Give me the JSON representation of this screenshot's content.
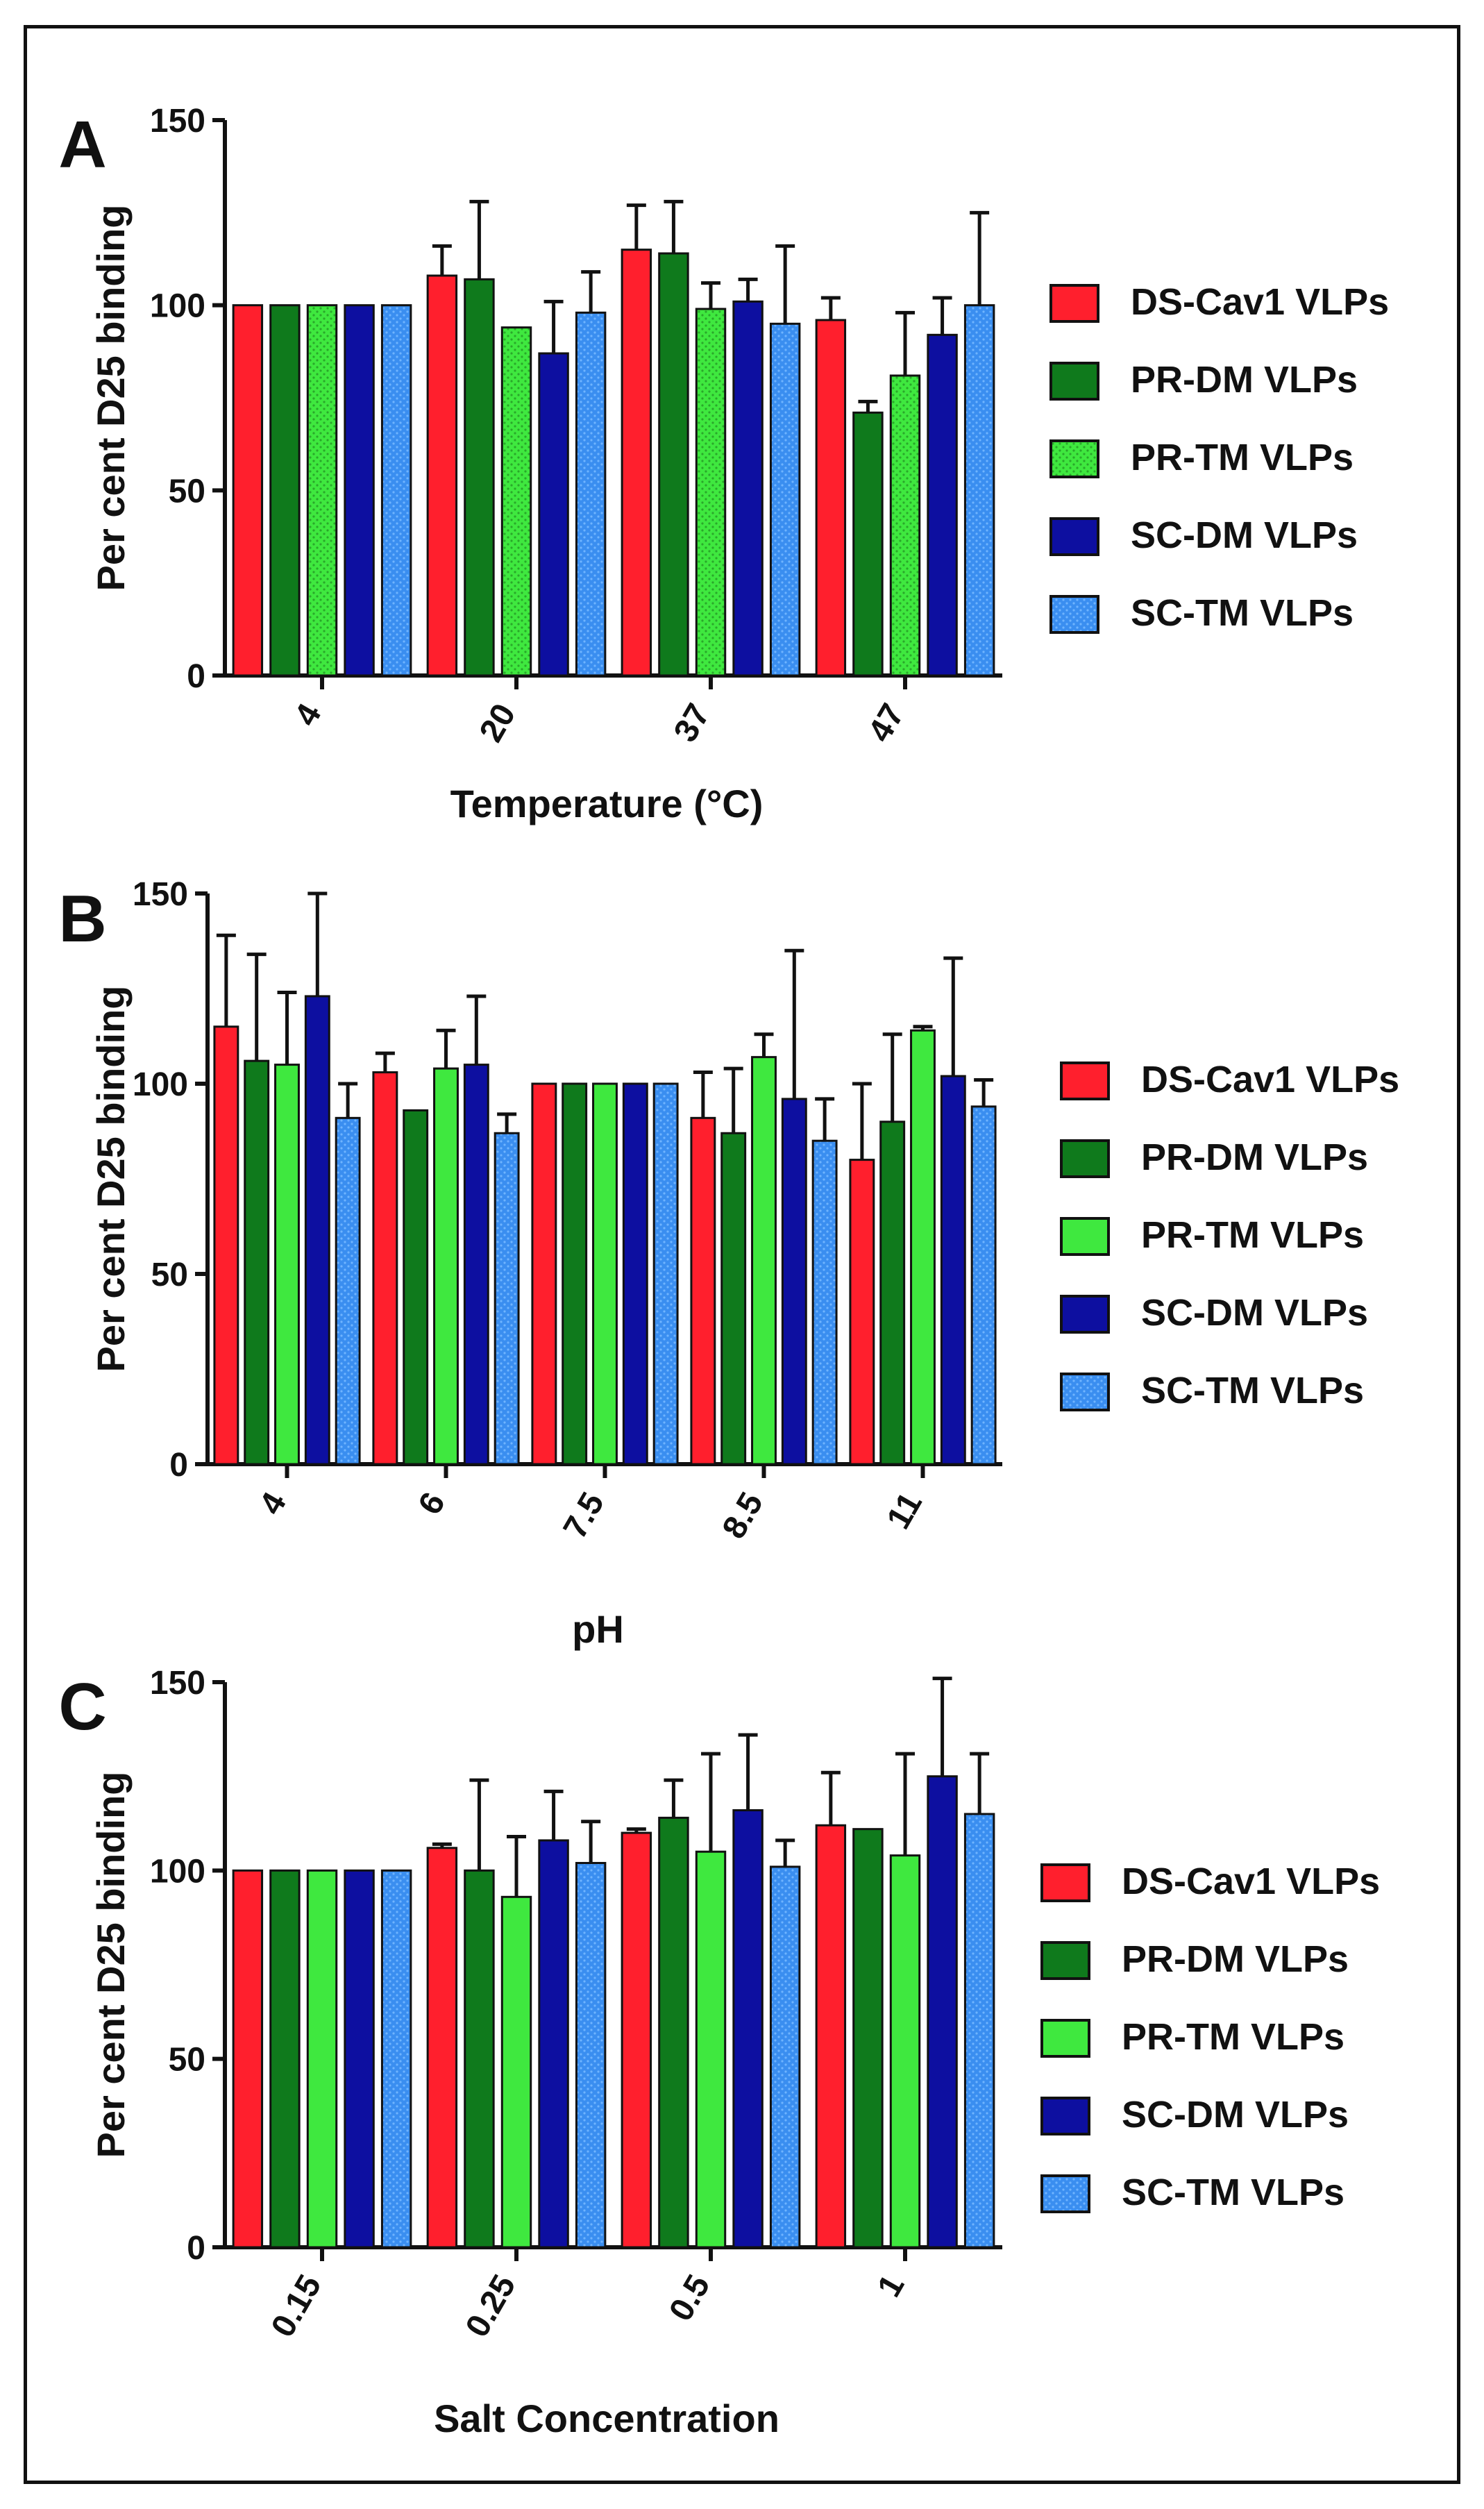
{
  "colors": {
    "DS-Cav1 VLPs": "#ff1f2d",
    "PR-DM VLPs": "#0f7a1c",
    "PR-TM VLPs": "#3fe83f",
    "SC-DM VLPs": "#0d0fa0",
    "SC-TM VLPs": "#3a8ef0"
  },
  "chart_data": [
    {
      "type": "bar",
      "panel_label": "A",
      "xlabel": "Temperature (°C)",
      "ylabel": "Per cent D25 binding",
      "ylim": [
        0,
        150
      ],
      "yticks": [
        "0",
        "50",
        "100",
        "150"
      ],
      "categories": [
        "4",
        "20",
        "37",
        "47"
      ],
      "legend": [
        "DS-Cav1 VLPs",
        "PR-DM VLPs",
        "PR-TM VLPs",
        "SC-DM VLPs",
        "SC-TM VLPs"
      ],
      "series": [
        {
          "name": "DS-Cav1 VLPs",
          "values": [
            100,
            108,
            115,
            96
          ],
          "errors": [
            0,
            8,
            12,
            6
          ],
          "pattern": "solid"
        },
        {
          "name": "PR-DM VLPs",
          "values": [
            100,
            107,
            114,
            71
          ],
          "errors": [
            0,
            21,
            14,
            3
          ],
          "pattern": "solid"
        },
        {
          "name": "PR-TM VLPs",
          "values": [
            100,
            94,
            99,
            81
          ],
          "errors": [
            0,
            0,
            7,
            17
          ],
          "pattern": "dotted"
        },
        {
          "name": "SC-DM VLPs",
          "values": [
            100,
            87,
            101,
            92
          ],
          "errors": [
            0,
            14,
            6,
            10
          ],
          "pattern": "solid"
        },
        {
          "name": "SC-TM VLPs",
          "values": [
            100,
            98,
            95,
            100
          ],
          "errors": [
            0,
            11,
            21,
            25
          ],
          "pattern": "dotted"
        }
      ]
    },
    {
      "type": "bar",
      "panel_label": "B",
      "xlabel": "pH",
      "ylabel": "Per cent D25 binding",
      "ylim": [
        0,
        150
      ],
      "yticks": [
        "0",
        "50",
        "100",
        "150"
      ],
      "categories": [
        "4",
        "6",
        "7.5",
        "8.5",
        "11"
      ],
      "legend": [
        "DS-Cav1 VLPs",
        "PR-DM VLPs",
        "PR-TM VLPs",
        "SC-DM VLPs",
        "SC-TM VLPs"
      ],
      "series": [
        {
          "name": "DS-Cav1 VLPs",
          "values": [
            115,
            103,
            100,
            91,
            80
          ],
          "errors": [
            24,
            5,
            0,
            12,
            20
          ],
          "pattern": "solid"
        },
        {
          "name": "PR-DM VLPs",
          "values": [
            106,
            93,
            100,
            87,
            90
          ],
          "errors": [
            28,
            0,
            0,
            17,
            23
          ],
          "pattern": "solid"
        },
        {
          "name": "PR-TM VLPs",
          "values": [
            105,
            104,
            100,
            107,
            114
          ],
          "errors": [
            19,
            10,
            0,
            6,
            1
          ],
          "pattern": "solid"
        },
        {
          "name": "SC-DM VLPs",
          "values": [
            123,
            105,
            100,
            96,
            102
          ],
          "errors": [
            27,
            18,
            0,
            39,
            31
          ],
          "pattern": "solid"
        },
        {
          "name": "SC-TM VLPs",
          "values": [
            91,
            87,
            100,
            85,
            94
          ],
          "errors": [
            9,
            5,
            0,
            11,
            7
          ],
          "pattern": "dotted"
        }
      ]
    },
    {
      "type": "bar",
      "panel_label": "C",
      "xlabel": "Salt Concentration",
      "ylabel": "Per cent D25 binding",
      "ylim": [
        0,
        150
      ],
      "yticks": [
        "0",
        "50",
        "100",
        "150"
      ],
      "categories": [
        "0.15",
        "0.25",
        "0.5",
        "1"
      ],
      "legend": [
        "DS-Cav1 VLPs",
        "PR-DM VLPs",
        "PR-TM VLPs",
        "SC-DM VLPs",
        "SC-TM VLPs"
      ],
      "series": [
        {
          "name": "DS-Cav1 VLPs",
          "values": [
            100,
            106,
            110,
            112
          ],
          "errors": [
            0,
            1,
            1,
            14
          ],
          "pattern": "solid"
        },
        {
          "name": "PR-DM VLPs",
          "values": [
            100,
            100,
            114,
            111
          ],
          "errors": [
            0,
            24,
            10,
            0
          ],
          "pattern": "solid"
        },
        {
          "name": "PR-TM VLPs",
          "values": [
            100,
            93,
            105,
            104
          ],
          "errors": [
            0,
            16,
            26,
            27
          ],
          "pattern": "solid"
        },
        {
          "name": "SC-DM VLPs",
          "values": [
            100,
            108,
            116,
            125
          ],
          "errors": [
            0,
            13,
            20,
            26
          ],
          "pattern": "solid"
        },
        {
          "name": "SC-TM VLPs",
          "values": [
            100,
            102,
            101,
            115
          ],
          "errors": [
            0,
            11,
            7,
            16
          ],
          "pattern": "dotted"
        }
      ]
    }
  ]
}
